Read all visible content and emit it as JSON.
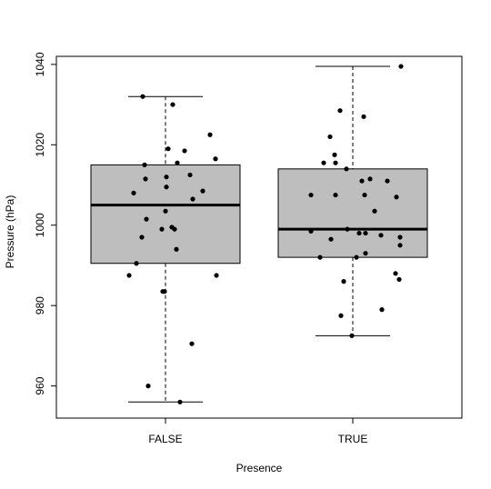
{
  "chart_data": {
    "type": "box",
    "title": "",
    "xlabel": "Presence",
    "ylabel": "Pressure (hPa)",
    "categories": [
      "FALSE",
      "TRUE"
    ],
    "ylim": [
      952,
      1042
    ],
    "yticks": [
      960,
      980,
      1000,
      1020,
      1040
    ],
    "box_fill": "#bebebe",
    "point_color": "#000000",
    "boxes": [
      {
        "category": "FALSE",
        "whisker_low": 956,
        "q1": 990.5,
        "median": 1005,
        "q3": 1015,
        "whisker_high": 1032
      },
      {
        "category": "TRUE",
        "whisker_low": 972.5,
        "q1": 992,
        "median": 999,
        "q3": 1014,
        "whisker_high": 1039.5
      }
    ],
    "points": [
      {
        "category": "FALSE",
        "jitter": -0.4,
        "y": 987.5
      },
      {
        "category": "FALSE",
        "jitter": -0.35,
        "y": 1008
      },
      {
        "category": "FALSE",
        "jitter": -0.32,
        "y": 990.5
      },
      {
        "category": "FALSE",
        "jitter": -0.26,
        "y": 997
      },
      {
        "category": "FALSE",
        "jitter": -0.25,
        "y": 1032
      },
      {
        "category": "FALSE",
        "jitter": -0.23,
        "y": 1015
      },
      {
        "category": "FALSE",
        "jitter": -0.22,
        "y": 1011.5
      },
      {
        "category": "FALSE",
        "jitter": -0.21,
        "y": 1001.5
      },
      {
        "category": "FALSE",
        "jitter": -0.19,
        "y": 960
      },
      {
        "category": "FALSE",
        "jitter": -0.04,
        "y": 999
      },
      {
        "category": "FALSE",
        "jitter": -0.03,
        "y": 983.5
      },
      {
        "category": "FALSE",
        "jitter": -0.01,
        "y": 983.5
      },
      {
        "category": "FALSE",
        "jitter": 0.0,
        "y": 1003.5
      },
      {
        "category": "FALSE",
        "jitter": 0.01,
        "y": 1009.5
      },
      {
        "category": "FALSE",
        "jitter": 0.01,
        "y": 1012
      },
      {
        "category": "FALSE",
        "jitter": 0.03,
        "y": 1019
      },
      {
        "category": "FALSE",
        "jitter": 0.07,
        "y": 999.5
      },
      {
        "category": "FALSE",
        "jitter": 0.08,
        "y": 1030
      },
      {
        "category": "FALSE",
        "jitter": 0.1,
        "y": 999
      },
      {
        "category": "FALSE",
        "jitter": 0.12,
        "y": 994
      },
      {
        "category": "FALSE",
        "jitter": 0.13,
        "y": 1015.5
      },
      {
        "category": "FALSE",
        "jitter": 0.16,
        "y": 956
      },
      {
        "category": "FALSE",
        "jitter": 0.21,
        "y": 1018.5
      },
      {
        "category": "FALSE",
        "jitter": 0.27,
        "y": 1012.5
      },
      {
        "category": "FALSE",
        "jitter": 0.29,
        "y": 970.5
      },
      {
        "category": "FALSE",
        "jitter": 0.3,
        "y": 1006.5
      },
      {
        "category": "FALSE",
        "jitter": 0.41,
        "y": 1008.5
      },
      {
        "category": "FALSE",
        "jitter": 0.49,
        "y": 1022.5
      },
      {
        "category": "FALSE",
        "jitter": 0.55,
        "y": 1016.5
      },
      {
        "category": "FALSE",
        "jitter": 0.56,
        "y": 987.5
      },
      {
        "category": "TRUE",
        "jitter": -0.46,
        "y": 1007.5
      },
      {
        "category": "TRUE",
        "jitter": -0.46,
        "y": 998.5
      },
      {
        "category": "TRUE",
        "jitter": -0.36,
        "y": 992
      },
      {
        "category": "TRUE",
        "jitter": -0.32,
        "y": 1015.5
      },
      {
        "category": "TRUE",
        "jitter": -0.25,
        "y": 1022
      },
      {
        "category": "TRUE",
        "jitter": -0.24,
        "y": 996.5
      },
      {
        "category": "TRUE",
        "jitter": -0.2,
        "y": 1017.5
      },
      {
        "category": "TRUE",
        "jitter": -0.19,
        "y": 1007.5
      },
      {
        "category": "TRUE",
        "jitter": -0.19,
        "y": 1015.5
      },
      {
        "category": "TRUE",
        "jitter": -0.14,
        "y": 1028.5
      },
      {
        "category": "TRUE",
        "jitter": -0.13,
        "y": 977.5
      },
      {
        "category": "TRUE",
        "jitter": -0.1,
        "y": 986
      },
      {
        "category": "TRUE",
        "jitter": -0.07,
        "y": 1014
      },
      {
        "category": "TRUE",
        "jitter": -0.06,
        "y": 999
      },
      {
        "category": "TRUE",
        "jitter": -0.01,
        "y": 972.5
      },
      {
        "category": "TRUE",
        "jitter": 0.04,
        "y": 992
      },
      {
        "category": "TRUE",
        "jitter": 0.07,
        "y": 998
      },
      {
        "category": "TRUE",
        "jitter": 0.1,
        "y": 1011
      },
      {
        "category": "TRUE",
        "jitter": 0.12,
        "y": 1027
      },
      {
        "category": "TRUE",
        "jitter": 0.13,
        "y": 1007.5
      },
      {
        "category": "TRUE",
        "jitter": 0.14,
        "y": 993
      },
      {
        "category": "TRUE",
        "jitter": 0.14,
        "y": 998
      },
      {
        "category": "TRUE",
        "jitter": 0.19,
        "y": 1011.5
      },
      {
        "category": "TRUE",
        "jitter": 0.24,
        "y": 1003.5
      },
      {
        "category": "TRUE",
        "jitter": 0.31,
        "y": 997.5
      },
      {
        "category": "TRUE",
        "jitter": 0.32,
        "y": 979
      },
      {
        "category": "TRUE",
        "jitter": 0.38,
        "y": 1011
      },
      {
        "category": "TRUE",
        "jitter": 0.47,
        "y": 988
      },
      {
        "category": "TRUE",
        "jitter": 0.48,
        "y": 1007
      },
      {
        "category": "TRUE",
        "jitter": 0.51,
        "y": 986.5
      },
      {
        "category": "TRUE",
        "jitter": 0.53,
        "y": 1039.5
      },
      {
        "category": "TRUE",
        "jitter": 0.52,
        "y": 997
      },
      {
        "category": "TRUE",
        "jitter": 0.52,
        "y": 995
      }
    ]
  }
}
